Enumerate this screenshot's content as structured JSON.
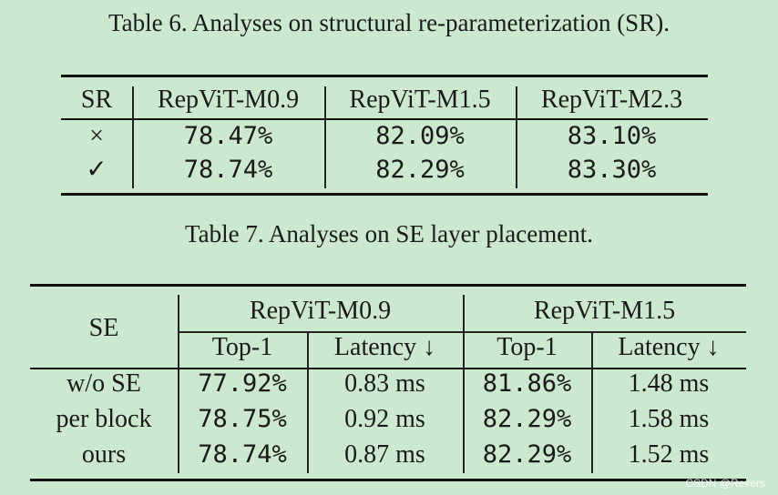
{
  "table6": {
    "caption": "Table 6. Analyses on structural re-parameterization (SR).",
    "headers": [
      "SR",
      "RepViT-M0.9",
      "RepViT-M1.5",
      "RepViT-M2.3"
    ],
    "rows": [
      [
        "×",
        "78.47%",
        "82.09%",
        "83.10%"
      ],
      [
        "✓",
        "78.74%",
        "82.29%",
        "83.30%"
      ]
    ]
  },
  "table7": {
    "caption": "Table 7. Analyses on SE layer placement.",
    "row_header": "SE",
    "group_headers": [
      "RepViT-M0.9",
      "RepViT-M1.5"
    ],
    "sub_headers": [
      "Top-1",
      "Latency ↓",
      "Top-1",
      "Latency ↓"
    ],
    "rows": [
      [
        "w/o SE",
        "77.92%",
        "0.83 ms",
        "81.86%",
        "1.48 ms"
      ],
      [
        "per block",
        "78.75%",
        "0.92 ms",
        "82.29%",
        "1.58 ms"
      ],
      [
        "ours",
        "78.74%",
        "0.87 ms",
        "82.29%",
        "1.52 ms"
      ]
    ]
  },
  "watermark": "CSDN @Revers"
}
